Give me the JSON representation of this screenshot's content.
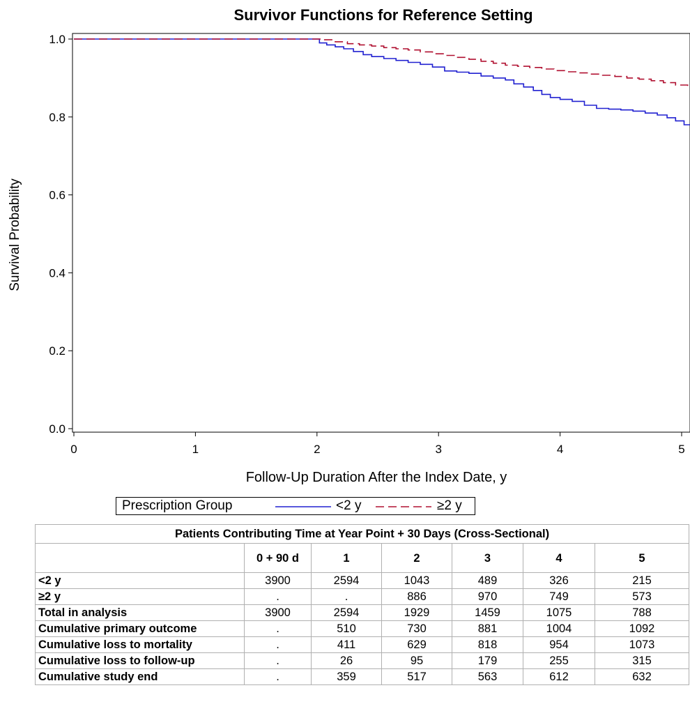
{
  "chart_data": {
    "type": "line",
    "title": "Survivor Functions for Reference Setting",
    "xlabel": "Follow-Up Duration After the Index Date, y",
    "ylabel": "Survival Probability",
    "xlim": [
      0,
      5.05
    ],
    "ylim": [
      0,
      1.02
    ],
    "xticks": [
      "0",
      "1",
      "2",
      "3",
      "4",
      "5"
    ],
    "yticks": [
      "0.0",
      "0.2",
      "0.4",
      "0.6",
      "0.8",
      "1.0"
    ],
    "step": true,
    "series": [
      {
        "name": "<2 y",
        "color": "#2020d0",
        "dash": "solid",
        "x": [
          0,
          2.0,
          2.02,
          2.08,
          2.15,
          2.22,
          2.3,
          2.38,
          2.45,
          2.55,
          2.65,
          2.75,
          2.85,
          2.95,
          3.05,
          3.15,
          3.25,
          3.35,
          3.45,
          3.55,
          3.62,
          3.7,
          3.78,
          3.85,
          3.92,
          4.0,
          4.1,
          4.2,
          4.3,
          4.4,
          4.5,
          4.6,
          4.7,
          4.8,
          4.88,
          4.95,
          5.02
        ],
        "y": [
          1.0,
          1.0,
          0.99,
          0.985,
          0.98,
          0.975,
          0.968,
          0.96,
          0.955,
          0.95,
          0.945,
          0.94,
          0.935,
          0.928,
          0.918,
          0.915,
          0.912,
          0.905,
          0.9,
          0.895,
          0.885,
          0.877,
          0.868,
          0.858,
          0.85,
          0.845,
          0.84,
          0.83,
          0.822,
          0.82,
          0.818,
          0.815,
          0.81,
          0.805,
          0.798,
          0.79,
          0.78
        ]
      },
      {
        "name": "≥2 y",
        "color": "#b01030",
        "dash": "dashed",
        "x": [
          0,
          2.0,
          2.05,
          2.15,
          2.25,
          2.35,
          2.45,
          2.55,
          2.65,
          2.75,
          2.85,
          2.95,
          3.05,
          3.15,
          3.25,
          3.35,
          3.45,
          3.55,
          3.65,
          3.75,
          3.85,
          3.95,
          4.05,
          4.15,
          4.25,
          4.35,
          4.45,
          4.55,
          4.65,
          4.75,
          4.85,
          4.95,
          5.05
        ],
        "y": [
          1.0,
          1.0,
          0.998,
          0.993,
          0.988,
          0.985,
          0.982,
          0.978,
          0.975,
          0.972,
          0.967,
          0.962,
          0.958,
          0.953,
          0.948,
          0.943,
          0.938,
          0.933,
          0.93,
          0.927,
          0.923,
          0.919,
          0.916,
          0.913,
          0.91,
          0.907,
          0.904,
          0.9,
          0.897,
          0.893,
          0.888,
          0.882,
          0.875
        ]
      }
    ]
  },
  "legend": {
    "title": "Prescription Group",
    "items": [
      "<2 y",
      "≥2 y"
    ]
  },
  "table": {
    "title": "Patients Contributing Time at Year Point + 30 Days (Cross-Sectional)",
    "columns": [
      "",
      "0 + 90 d",
      "1",
      "2",
      "3",
      "4",
      "5"
    ],
    "rows": [
      {
        "label": "<2 y",
        "values": [
          "3900",
          "2594",
          "1043",
          "489",
          "326",
          "215"
        ]
      },
      {
        "label": "≥2 y",
        "values": [
          ".",
          ".",
          "886",
          "970",
          "749",
          "573"
        ]
      },
      {
        "label": "Total in analysis",
        "values": [
          "3900",
          "2594",
          "1929",
          "1459",
          "1075",
          "788"
        ]
      },
      {
        "label": "Cumulative primary outcome",
        "values": [
          ".",
          "510",
          "730",
          "881",
          "1004",
          "1092"
        ]
      },
      {
        "label": "Cumulative loss to mortality",
        "values": [
          ".",
          "411",
          "629",
          "818",
          "954",
          "1073"
        ]
      },
      {
        "label": "Cumulative loss to follow-up",
        "values": [
          ".",
          "26",
          "95",
          "179",
          "255",
          "315"
        ]
      },
      {
        "label": "Cumulative study end",
        "values": [
          ".",
          "359",
          "517",
          "563",
          "612",
          "632"
        ]
      }
    ]
  }
}
